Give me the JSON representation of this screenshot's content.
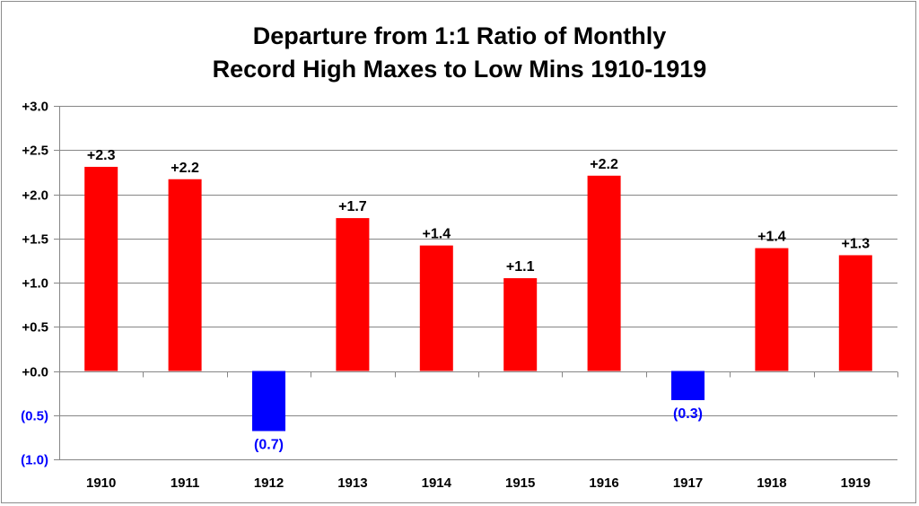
{
  "chart_data": {
    "type": "bar",
    "title_lines": [
      "Departure from 1:1 Ratio of Monthly",
      "Record High Maxes to Low Mins 1910-1919"
    ],
    "categories": [
      "1910",
      "1911",
      "1912",
      "1913",
      "1914",
      "1915",
      "1916",
      "1917",
      "1918",
      "1919"
    ],
    "values": [
      2.31,
      2.17,
      -0.68,
      1.73,
      1.42,
      1.05,
      2.21,
      -0.33,
      1.39,
      1.31
    ],
    "data_labels": [
      "+2.3",
      "+2.2",
      "(0.7)",
      "+1.7",
      "+1.4",
      "+1.1",
      "+2.2",
      "(0.3)",
      "+1.4",
      "+1.3"
    ],
    "y_ticks": [
      3.0,
      2.5,
      2.0,
      1.5,
      1.0,
      0.5,
      0.0,
      -0.5,
      -1.0
    ],
    "y_tick_labels": [
      "+3.0",
      "+2.5",
      "+2.0",
      "+1.5",
      "+1.0",
      "+0.5",
      "+0.0",
      "(0.5)",
      "(1.0)"
    ],
    "ylim": [
      -1.0,
      3.0
    ],
    "grid": true,
    "xlabel": "",
    "ylabel": "",
    "colors": {
      "positive_bar": "#ff0000",
      "negative_bar": "#0000ff",
      "negative_label": "#0000ff",
      "positive_label": "#000000",
      "gridline": "#868686"
    }
  }
}
